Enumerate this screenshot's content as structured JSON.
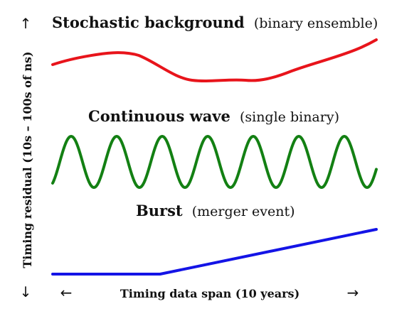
{
  "signals": [
    {
      "id": "stochastic",
      "title": "Stochastic background",
      "subtitle": "(binary ensemble)",
      "color": "#e8141b"
    },
    {
      "id": "continuous",
      "title": "Continuous wave",
      "subtitle": "(single binary)",
      "color": "#138013"
    },
    {
      "id": "burst",
      "title": "Burst",
      "subtitle": "(merger event)",
      "color": "#1414e6"
    }
  ],
  "axes": {
    "x_label": "Timing data span (10 years)",
    "y_label": "Timing residual (10s – 100s of ns)",
    "left_arrow": "←",
    "right_arrow": "→",
    "up_arrow": "↑",
    "down_arrow": "↓"
  }
}
